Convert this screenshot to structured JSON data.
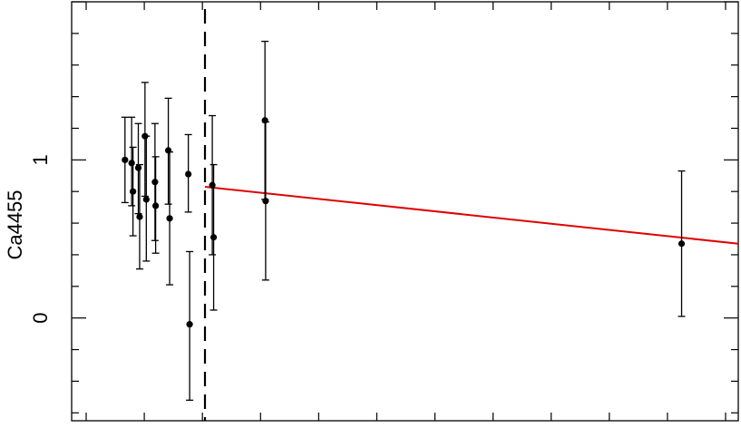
{
  "chart_data": {
    "type": "scatter",
    "title": "",
    "xlabel": "",
    "ylabel": "Ca4455",
    "xlim": [
      0,
      1
    ],
    "ylim": [
      -0.65,
      2.0
    ],
    "y_ticks": [
      {
        "value": 0,
        "label": "0"
      },
      {
        "value": 1,
        "label": "1"
      }
    ],
    "y_minor_step": 0.2,
    "x_tick_count": 12,
    "grid": false,
    "colors": {
      "points": "#000000",
      "fit_line": "#e00000",
      "divider": "#000000"
    },
    "points": [
      {
        "x": 0.08,
        "y": 1.0,
        "err_low": 0.27,
        "err_high": 0.27
      },
      {
        "x": 0.09,
        "y": 0.98,
        "err_low": 0.27,
        "err_high": 0.29
      },
      {
        "x": 0.092,
        "y": 0.8,
        "err_low": 0.28,
        "err_high": 0.28
      },
      {
        "x": 0.1,
        "y": 0.95,
        "err_low": 0.29,
        "err_high": 0.28
      },
      {
        "x": 0.102,
        "y": 0.64,
        "err_low": 0.33,
        "err_high": 0.33
      },
      {
        "x": 0.11,
        "y": 1.15,
        "err_low": 0.38,
        "err_high": 0.34
      },
      {
        "x": 0.112,
        "y": 0.75,
        "err_low": 0.39,
        "err_high": 0.4
      },
      {
        "x": 0.125,
        "y": 0.86,
        "err_low": 0.37,
        "err_high": 0.37
      },
      {
        "x": 0.126,
        "y": 0.71,
        "err_low": 0.3,
        "err_high": 0.31
      },
      {
        "x": 0.145,
        "y": 1.06,
        "err_low": 0.34,
        "err_high": 0.33
      },
      {
        "x": 0.147,
        "y": 0.63,
        "err_low": 0.42,
        "err_high": 0.42
      },
      {
        "x": 0.175,
        "y": 0.91,
        "err_low": 0.24,
        "err_high": 0.25
      },
      {
        "x": 0.177,
        "y": -0.04,
        "err_low": 0.48,
        "err_high": 0.46
      },
      {
        "x": 0.211,
        "y": 0.84,
        "err_low": 0.44,
        "err_high": 0.44
      },
      {
        "x": 0.213,
        "y": 0.51,
        "err_low": 0.46,
        "err_high": 0.46
      },
      {
        "x": 0.29,
        "y": 1.25,
        "err_low": 0.5,
        "err_high": 0.5
      },
      {
        "x": 0.291,
        "y": 0.74,
        "err_low": 0.5,
        "err_high": 0.5
      },
      {
        "x": 0.915,
        "y": 0.47,
        "err_low": 0.46,
        "err_high": 0.46
      }
    ],
    "fit_line": {
      "x": [
        0.2,
        1.0
      ],
      "y": [
        0.83,
        0.47
      ]
    },
    "divider_x": 0.2
  }
}
